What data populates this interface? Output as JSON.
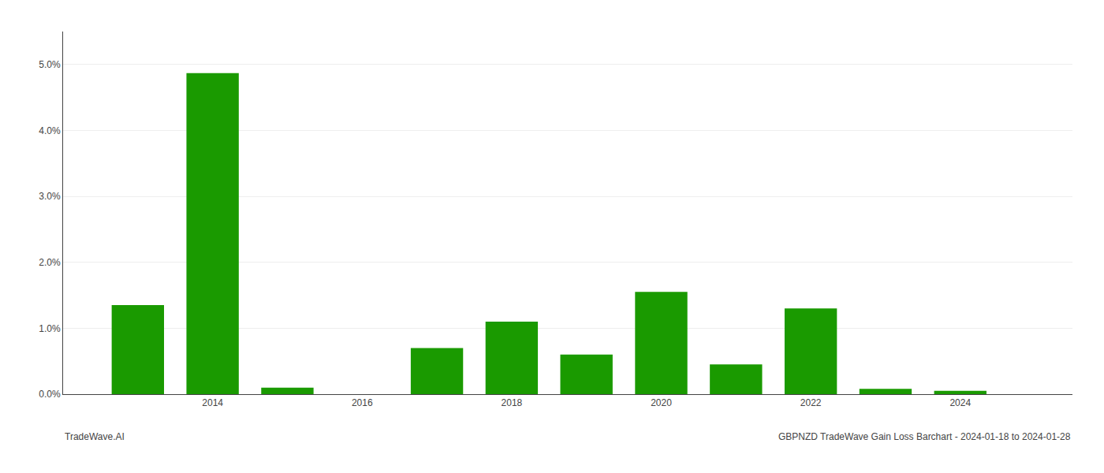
{
  "chart_data": {
    "type": "bar",
    "x": [
      2013,
      2014,
      2015,
      2016,
      2017,
      2018,
      2019,
      2020,
      2021,
      2022,
      2023,
      2024
    ],
    "values": [
      0.0135,
      0.0487,
      0.001,
      0.0,
      0.007,
      0.011,
      0.006,
      0.0155,
      0.0045,
      0.013,
      0.0008,
      0.0005
    ],
    "color": "#1a9a00",
    "xlim": [
      2012.0,
      2025.5
    ],
    "xticks": [
      2014,
      2016,
      2018,
      2020,
      2022,
      2024
    ],
    "ylim": [
      0,
      0.055
    ],
    "yticks": [
      {
        "value": 0.0,
        "label": "0.0%"
      },
      {
        "value": 0.01,
        "label": "1.0%"
      },
      {
        "value": 0.02,
        "label": "2.0%"
      },
      {
        "value": 0.03,
        "label": "3.0%"
      },
      {
        "value": 0.04,
        "label": "4.0%"
      },
      {
        "value": 0.05,
        "label": "5.0%"
      }
    ],
    "grid": true,
    "annotations": [
      "TradeWave.AI",
      "GBPNZD TradeWave Gain Loss Barchart - 2024-01-18 to 2024-01-28"
    ]
  }
}
